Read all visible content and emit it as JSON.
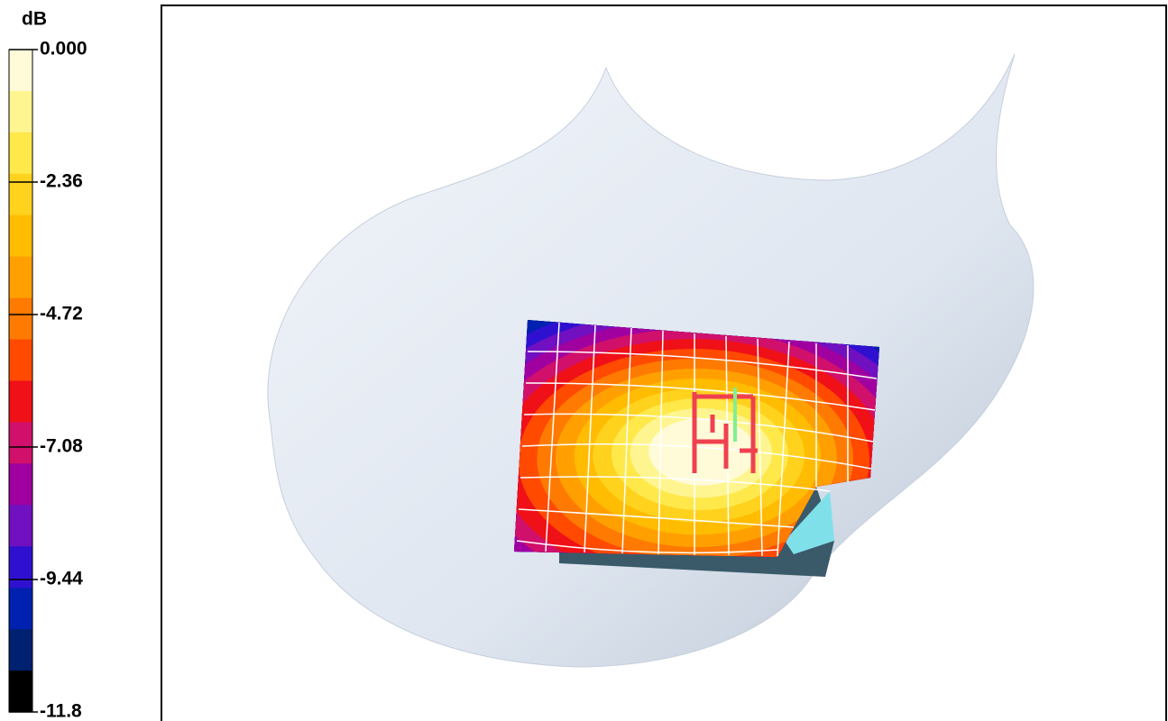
{
  "colorbar": {
    "title": "dB",
    "range": [
      -11.8,
      0
    ],
    "ticks": [
      {
        "value": 0,
        "label": "0.000"
      },
      -2.36,
      -4.72,
      -7.08,
      -9.44,
      -11.8
    ],
    "colors": [
      "#fffbd8",
      "#fff590",
      "#ffe84a",
      "#ffd21e",
      "#ffbc00",
      "#ffa000",
      "#ff7a00",
      "#ff4a00",
      "#f01018",
      "#d0106a",
      "#a000a0",
      "#7010c0",
      "#3010d0",
      "#0020b0",
      "#002070",
      "#000000"
    ]
  }
}
